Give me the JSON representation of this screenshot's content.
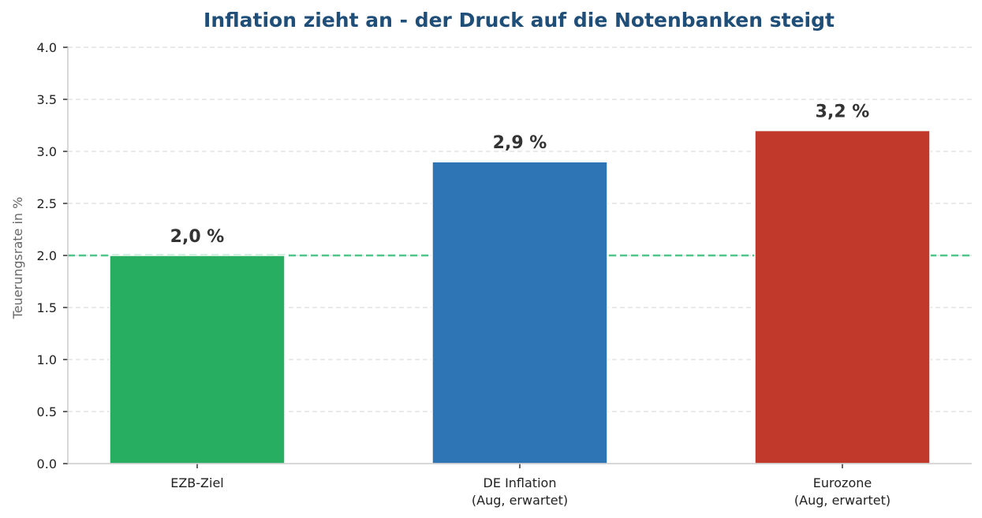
{
  "chart_data": {
    "type": "bar",
    "title": "Inflation zieht an - der Druck auf die Notenbanken steigt",
    "ylabel": "Teuerungsrate in %",
    "xlabel": "",
    "ylim": [
      0,
      4.0
    ],
    "yticks": [
      "0.0",
      "0.5",
      "1.0",
      "1.5",
      "2.0",
      "2.5",
      "3.0",
      "3.5",
      "4.0"
    ],
    "grid": true,
    "categories": [
      [
        "EZB-Ziel"
      ],
      [
        "DE Inflation",
        "(Aug, erwartet)"
      ],
      [
        "Eurozone",
        "(Aug, erwartet)"
      ]
    ],
    "values": [
      2.0,
      2.9,
      3.2
    ],
    "value_labels": [
      "2,0 %",
      "2,9 %",
      "3,2 %"
    ],
    "bar_colors": [
      "#27ae60",
      "#2e75b6",
      "#c0392b"
    ],
    "reference_line": {
      "value": 2.0,
      "color": "#52c48a",
      "style": "dashed"
    }
  }
}
